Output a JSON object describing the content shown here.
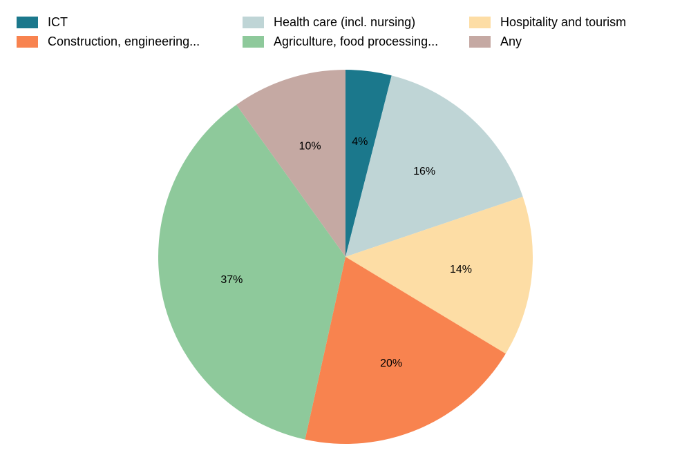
{
  "chart_data": {
    "type": "pie",
    "title": "",
    "start": "12 o'clock",
    "direction": "clockwise",
    "legend_position": "top",
    "slices": [
      {
        "label": "ICT",
        "percent": 4,
        "value_label": "4%",
        "color": "#1b788c"
      },
      {
        "label": "Health care (incl. nursing)",
        "percent": 16,
        "value_label": "16%",
        "color": "#bfd5d6"
      },
      {
        "label": "Hospitality and tourism",
        "percent": 14,
        "value_label": "14%",
        "color": "#fddda5"
      },
      {
        "label": "Construction, engineering...",
        "percent": 20,
        "value_label": "20%",
        "color": "#f8834f"
      },
      {
        "label": "Agriculture, food processing...",
        "percent": 37,
        "value_label": "37%",
        "color": "#8ec99b"
      },
      {
        "label": "Any",
        "percent": 10,
        "value_label": "10%",
        "color": "#c5a9a3"
      }
    ]
  }
}
